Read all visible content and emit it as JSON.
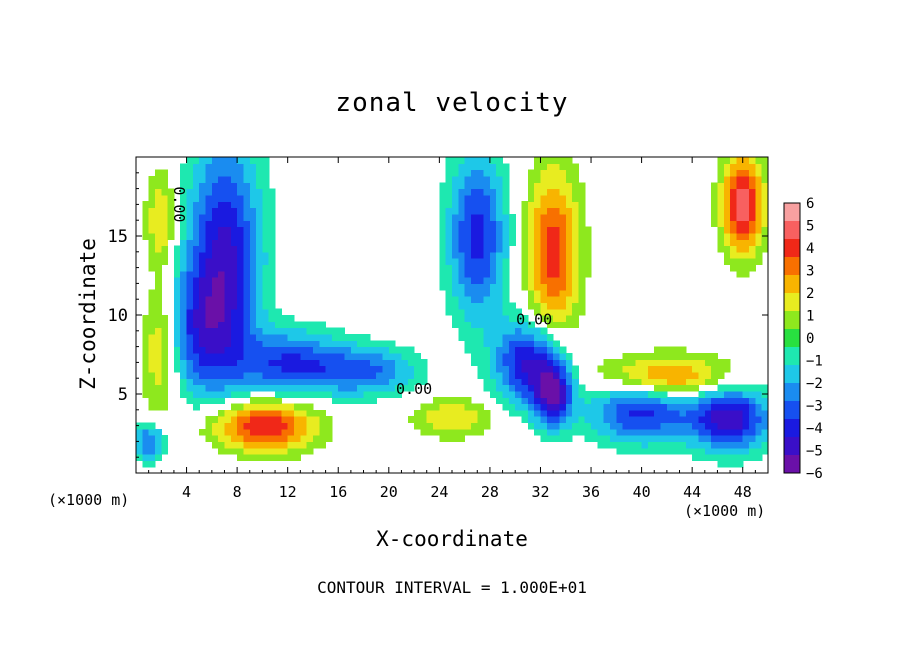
{
  "chart_data": {
    "type": "heatmap",
    "title": "zonal velocity",
    "xlabel": "X-coordinate",
    "ylabel": "Z-coordinate",
    "x_unit": "(×1000 m)",
    "xlim": [
      0,
      50
    ],
    "ylim": [
      0,
      20
    ],
    "x_ticks": [
      4,
      8,
      12,
      16,
      20,
      24,
      28,
      32,
      36,
      40,
      44,
      48
    ],
    "y_ticks": [
      5,
      10,
      15
    ],
    "colorbar": {
      "ticks": [
        6,
        5,
        4,
        3,
        2,
        1,
        0,
        -1,
        -2,
        -3,
        -4,
        -5,
        -6
      ],
      "vmin": -6,
      "vmax": 6,
      "colors": [
        "#6a10a8",
        "#3a0fc8",
        "#1a1ae0",
        "#1650f0",
        "#1a8cf0",
        "#1ec8e8",
        "#1ee8b0",
        "#28e040",
        "#8ee81e",
        "#e8ec20",
        "#f8b400",
        "#f87000",
        "#f02818",
        "#f86060",
        "#f8a0a0"
      ]
    },
    "contour_labels": [
      "0.00",
      "0.00",
      "0.00"
    ],
    "contour_interval_text": "CONTOUR INTERVAL = 1.000E+01"
  }
}
